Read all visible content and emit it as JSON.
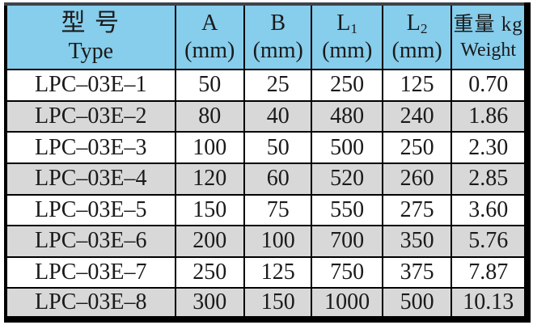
{
  "table": {
    "title": "LPC-03E model specification table",
    "header": {
      "type_zh": "型 号",
      "type_en": "Type",
      "a_label": "A",
      "a_unit": "(mm)",
      "b_label": "B",
      "b_unit": "(mm)",
      "l1_label": "L",
      "l1_sub": "1",
      "l1_unit": "(mm)",
      "l2_label": "L",
      "l2_sub": "2",
      "l2_unit": "(mm)",
      "weight_zh": "重量 kg",
      "weight_en": "Weight"
    },
    "rows": [
      {
        "type": "LPC–03E–1",
        "a": "50",
        "b": "25",
        "l1": "250",
        "l2": "125",
        "weight": "0.70"
      },
      {
        "type": "LPC–03E–2",
        "a": "80",
        "b": "40",
        "l1": "480",
        "l2": "240",
        "weight": "1.86"
      },
      {
        "type": "LPC–03E–3",
        "a": "100",
        "b": "50",
        "l1": "500",
        "l2": "250",
        "weight": "2.30"
      },
      {
        "type": "LPC–03E–4",
        "a": "120",
        "b": "60",
        "l1": "520",
        "l2": "260",
        "weight": "2.85"
      },
      {
        "type": "LPC–03E–5",
        "a": "150",
        "b": "75",
        "l1": "550",
        "l2": "275",
        "weight": "3.60"
      },
      {
        "type": "LPC–03E–6",
        "a": "200",
        "b": "100",
        "l1": "700",
        "l2": "350",
        "weight": "5.76"
      },
      {
        "type": "LPC–03E–7",
        "a": "250",
        "b": "125",
        "l1": "750",
        "l2": "375",
        "weight": "7.87"
      },
      {
        "type": "LPC–03E–8",
        "a": "300",
        "b": "150",
        "l1": "1000",
        "l2": "500",
        "weight": "10.13"
      }
    ],
    "columns_order": [
      "type",
      "a",
      "b",
      "l1",
      "l2",
      "weight"
    ]
  },
  "colors": {
    "header_bg": "#87cdec",
    "row_bg": "#ffffff",
    "row_alt_bg": "#d8d8d8",
    "border": "#000000",
    "border_top": "#3d434b"
  }
}
